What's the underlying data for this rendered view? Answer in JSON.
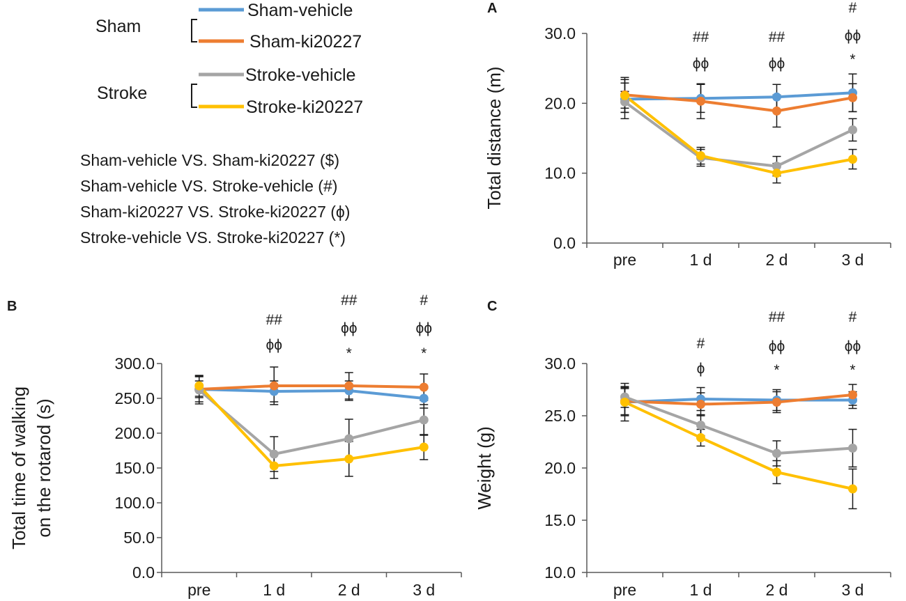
{
  "series_colors": {
    "sham_vehicle": "#5b9bd5",
    "sham_ki20227": "#ed7d31",
    "stroke_vehicle": "#a5a5a5",
    "stroke_ki20227": "#ffc000"
  },
  "legend": {
    "sham_group": "Sham",
    "stroke_group": "Stroke",
    "items": [
      {
        "label": "Sham-vehicle",
        "color": "#5b9bd5"
      },
      {
        "label": "Sham-ki20227",
        "color": "#ed7d31"
      },
      {
        "label": "Stroke-vehicle",
        "color": "#a5a5a5"
      },
      {
        "label": "Stroke-ki20227",
        "color": "#ffc000"
      }
    ],
    "comparisons": [
      "Sham-vehicle VS. Sham-ki20227 ($)",
      "Sham-vehicle VS. Stroke-vehicle (#)",
      "Sham-ki20227 VS. Stroke-ki20227 (ϕ)",
      "Stroke-vehicle VS. Stroke-ki20227 (*)"
    ]
  },
  "chart_data": [
    {
      "panel": "A",
      "type": "line",
      "ylabel": "Total distance (m)",
      "xlabel": "",
      "categories": [
        "pre",
        "1 d",
        "2 d",
        "3 d"
      ],
      "ylim": [
        0,
        30
      ],
      "yticks": [
        "0.0",
        "10.0",
        "20.0",
        "30.0"
      ],
      "series": [
        {
          "name": "Sham-vehicle",
          "values": [
            20.6,
            20.7,
            20.9,
            21.5
          ],
          "err": [
            2.8,
            2.0,
            1.8,
            2.7
          ]
        },
        {
          "name": "Sham-ki20227",
          "values": [
            21.2,
            20.3,
            18.9,
            20.8
          ],
          "err": [
            2.5,
            2.5,
            2.3,
            2.0
          ]
        },
        {
          "name": "Stroke-vehicle",
          "values": [
            20.2,
            12.2,
            11.0,
            16.2
          ],
          "err": [
            1.5,
            1.2,
            1.4,
            1.6
          ]
        },
        {
          "name": "Stroke-ki20227",
          "values": [
            21.1,
            12.5,
            10.0,
            12.0
          ],
          "err": [
            1.8,
            1.2,
            1.4,
            1.4
          ]
        }
      ],
      "annotations": [
        {
          "category": "1 d",
          "lines": [
            "##",
            "ϕϕ"
          ]
        },
        {
          "category": "2 d",
          "lines": [
            "##",
            "ϕϕ"
          ]
        },
        {
          "category": "3 d",
          "lines": [
            "#",
            "ϕϕ",
            "*"
          ]
        }
      ]
    },
    {
      "panel": "B",
      "type": "line",
      "ylabel": "Total time of walking\non the rotarod (s)",
      "xlabel": "",
      "categories": [
        "pre",
        "1 d",
        "2 d",
        "3 d"
      ],
      "ylim": [
        0,
        300
      ],
      "yticks": [
        "0.0",
        "50.0",
        "100.0",
        "150.0",
        "200.0",
        "250.0",
        "300.0"
      ],
      "series": [
        {
          "name": "Sham-vehicle",
          "values": [
            263,
            260,
            261,
            250
          ],
          "err": [
            12,
            15,
            14,
            14
          ]
        },
        {
          "name": "Sham-ki20227",
          "values": [
            263,
            268,
            268,
            266
          ],
          "err": [
            18,
            27,
            19,
            19
          ]
        },
        {
          "name": "Stroke-vehicle",
          "values": [
            262,
            170,
            192,
            219
          ],
          "err": [
            20,
            25,
            28,
            22
          ]
        },
        {
          "name": "Stroke-ki20227",
          "values": [
            268,
            153,
            163,
            180
          ],
          "err": [
            15,
            18,
            25,
            18
          ]
        }
      ],
      "annotations": [
        {
          "category": "1 d",
          "lines": [
            "##",
            "ϕϕ"
          ]
        },
        {
          "category": "2 d",
          "lines": [
            "##",
            "ϕϕ",
            "*"
          ]
        },
        {
          "category": "3 d",
          "lines": [
            "#",
            "ϕϕ",
            "*"
          ]
        }
      ]
    },
    {
      "panel": "C",
      "type": "line",
      "ylabel": "Weight (g)",
      "xlabel": "",
      "categories": [
        "pre",
        "1 d",
        "2 d",
        "3 d"
      ],
      "ylim": [
        10,
        30
      ],
      "yticks": [
        "10.0",
        "15.0",
        "20.0",
        "25.0",
        "30.0"
      ],
      "series": [
        {
          "name": "Sham-vehicle",
          "values": [
            26.3,
            26.6,
            26.5,
            26.5
          ],
          "err": [
            1.3,
            1.1,
            1.0,
            0.8
          ]
        },
        {
          "name": "Sham-ki20227",
          "values": [
            26.4,
            26.1,
            26.3,
            27.0
          ],
          "err": [
            1.3,
            1.1,
            1.0,
            1.0
          ]
        },
        {
          "name": "Stroke-vehicle",
          "values": [
            26.8,
            24.1,
            21.4,
            21.9
          ],
          "err": [
            1.0,
            1.0,
            1.2,
            1.8
          ]
        },
        {
          "name": "Stroke-ki20227",
          "values": [
            26.3,
            22.9,
            19.6,
            18.0
          ],
          "err": [
            1.8,
            0.8,
            1.1,
            1.9
          ]
        }
      ],
      "annotations": [
        {
          "category": "1 d",
          "lines": [
            "#",
            "ϕ"
          ]
        },
        {
          "category": "2 d",
          "lines": [
            "##",
            "ϕϕ",
            "*"
          ]
        },
        {
          "category": "3 d",
          "lines": [
            "#",
            "ϕϕ",
            "*"
          ]
        }
      ]
    }
  ]
}
